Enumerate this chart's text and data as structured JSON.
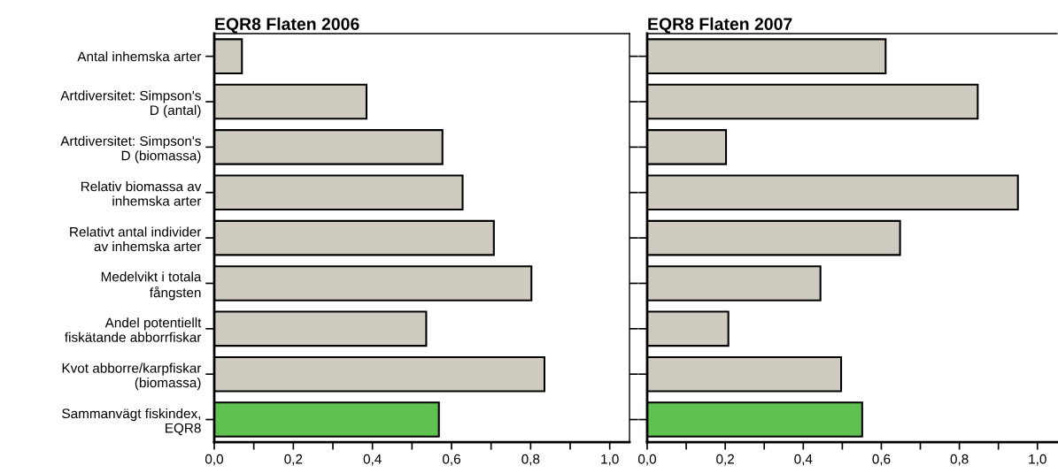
{
  "chart_data": [
    {
      "type": "bar",
      "orientation": "horizontal",
      "title": "EQR8 Flaten 2006",
      "categories": [
        "Antal inhemska arter",
        "Artdiversitet: Simpson's\nD (antal)",
        "Artdiversitet: Simpson's\nD (biomassa)",
        "Relativ biomassa av\ninhemska arter",
        "Relativt antal individer\nav inhemska arter",
        "Medelvikt i totala\nfångsten",
        "Andel potentiellt\nfiskätande abborrfiskar",
        "Kvot abborre/karpfiskar\n(biomassa)",
        "Sammanvägt fiskindex,\nEQR8"
      ],
      "values": [
        0.07,
        0.385,
        0.577,
        0.628,
        0.707,
        0.802,
        0.536,
        0.835,
        0.568
      ],
      "colors": [
        "#cfcbc0",
        "#cfcbc0",
        "#cfcbc0",
        "#cfcbc0",
        "#cfcbc0",
        "#cfcbc0",
        "#cfcbc0",
        "#cfcbc0",
        "#5fc150"
      ],
      "xlim": [
        0,
        1.05
      ],
      "xticks": [
        {
          "value": 0,
          "label": "0,0"
        },
        {
          "value": 0.1,
          "label": null
        },
        {
          "value": 0.2,
          "label": "0,2"
        },
        {
          "value": 0.3,
          "label": null
        },
        {
          "value": 0.4,
          "label": "0,4"
        },
        {
          "value": 0.5,
          "label": null
        },
        {
          "value": 0.6,
          "label": "0,6"
        },
        {
          "value": 0.7,
          "label": null
        },
        {
          "value": 0.8,
          "label": "0,8"
        },
        {
          "value": 0.9,
          "label": null
        },
        {
          "value": 1.0,
          "label": "1,0"
        }
      ],
      "grid": false,
      "legend": false
    },
    {
      "type": "bar",
      "orientation": "horizontal",
      "title": "EQR8 Flaten 2007",
      "categories": [
        null,
        null,
        null,
        null,
        null,
        null,
        null,
        null,
        null
      ],
      "values": [
        0.611,
        0.847,
        0.202,
        0.95,
        0.648,
        0.444,
        0.208,
        0.497,
        0.551
      ],
      "colors": [
        "#cfcbc0",
        "#cfcbc0",
        "#cfcbc0",
        "#cfcbc0",
        "#cfcbc0",
        "#cfcbc0",
        "#cfcbc0",
        "#cfcbc0",
        "#5fc150"
      ],
      "xlim": [
        0,
        1.05
      ],
      "xticks": [
        {
          "value": 0,
          "label": "0,0"
        },
        {
          "value": 0.1,
          "label": null
        },
        {
          "value": 0.2,
          "label": "0,2"
        },
        {
          "value": 0.3,
          "label": null
        },
        {
          "value": 0.4,
          "label": "0,4"
        },
        {
          "value": 0.5,
          "label": null
        },
        {
          "value": 0.6,
          "label": "0,6"
        },
        {
          "value": 0.7,
          "label": null
        },
        {
          "value": 0.8,
          "label": "0,8"
        },
        {
          "value": 0.9,
          "label": null
        },
        {
          "value": 1.0,
          "label": "1,0"
        }
      ],
      "tick_labels": "x",
      "grid": false,
      "legend": false
    }
  ]
}
